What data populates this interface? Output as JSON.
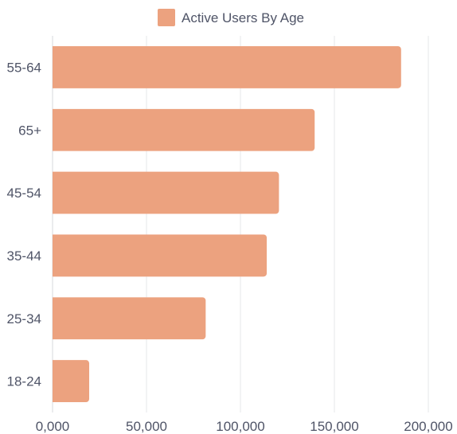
{
  "chart_data": {
    "type": "bar",
    "orientation": "horizontal",
    "categories": [
      "55-64",
      "65+",
      "45-54",
      "35-44",
      "25-34",
      "18-24"
    ],
    "series": [
      {
        "name": "Active Users By Age",
        "values": [
          185500,
          139500,
          120500,
          114000,
          81500,
          19500
        ]
      }
    ],
    "xlim": [
      0,
      200000
    ],
    "x_ticks": [
      0,
      50000,
      100000,
      150000,
      200000
    ],
    "x_tick_labels": [
      "0,000",
      "50,000",
      "100,000",
      "150,000",
      "200,000"
    ],
    "grid": "vertical",
    "legend_position": "top-center",
    "bar_color": "#eca27f"
  }
}
